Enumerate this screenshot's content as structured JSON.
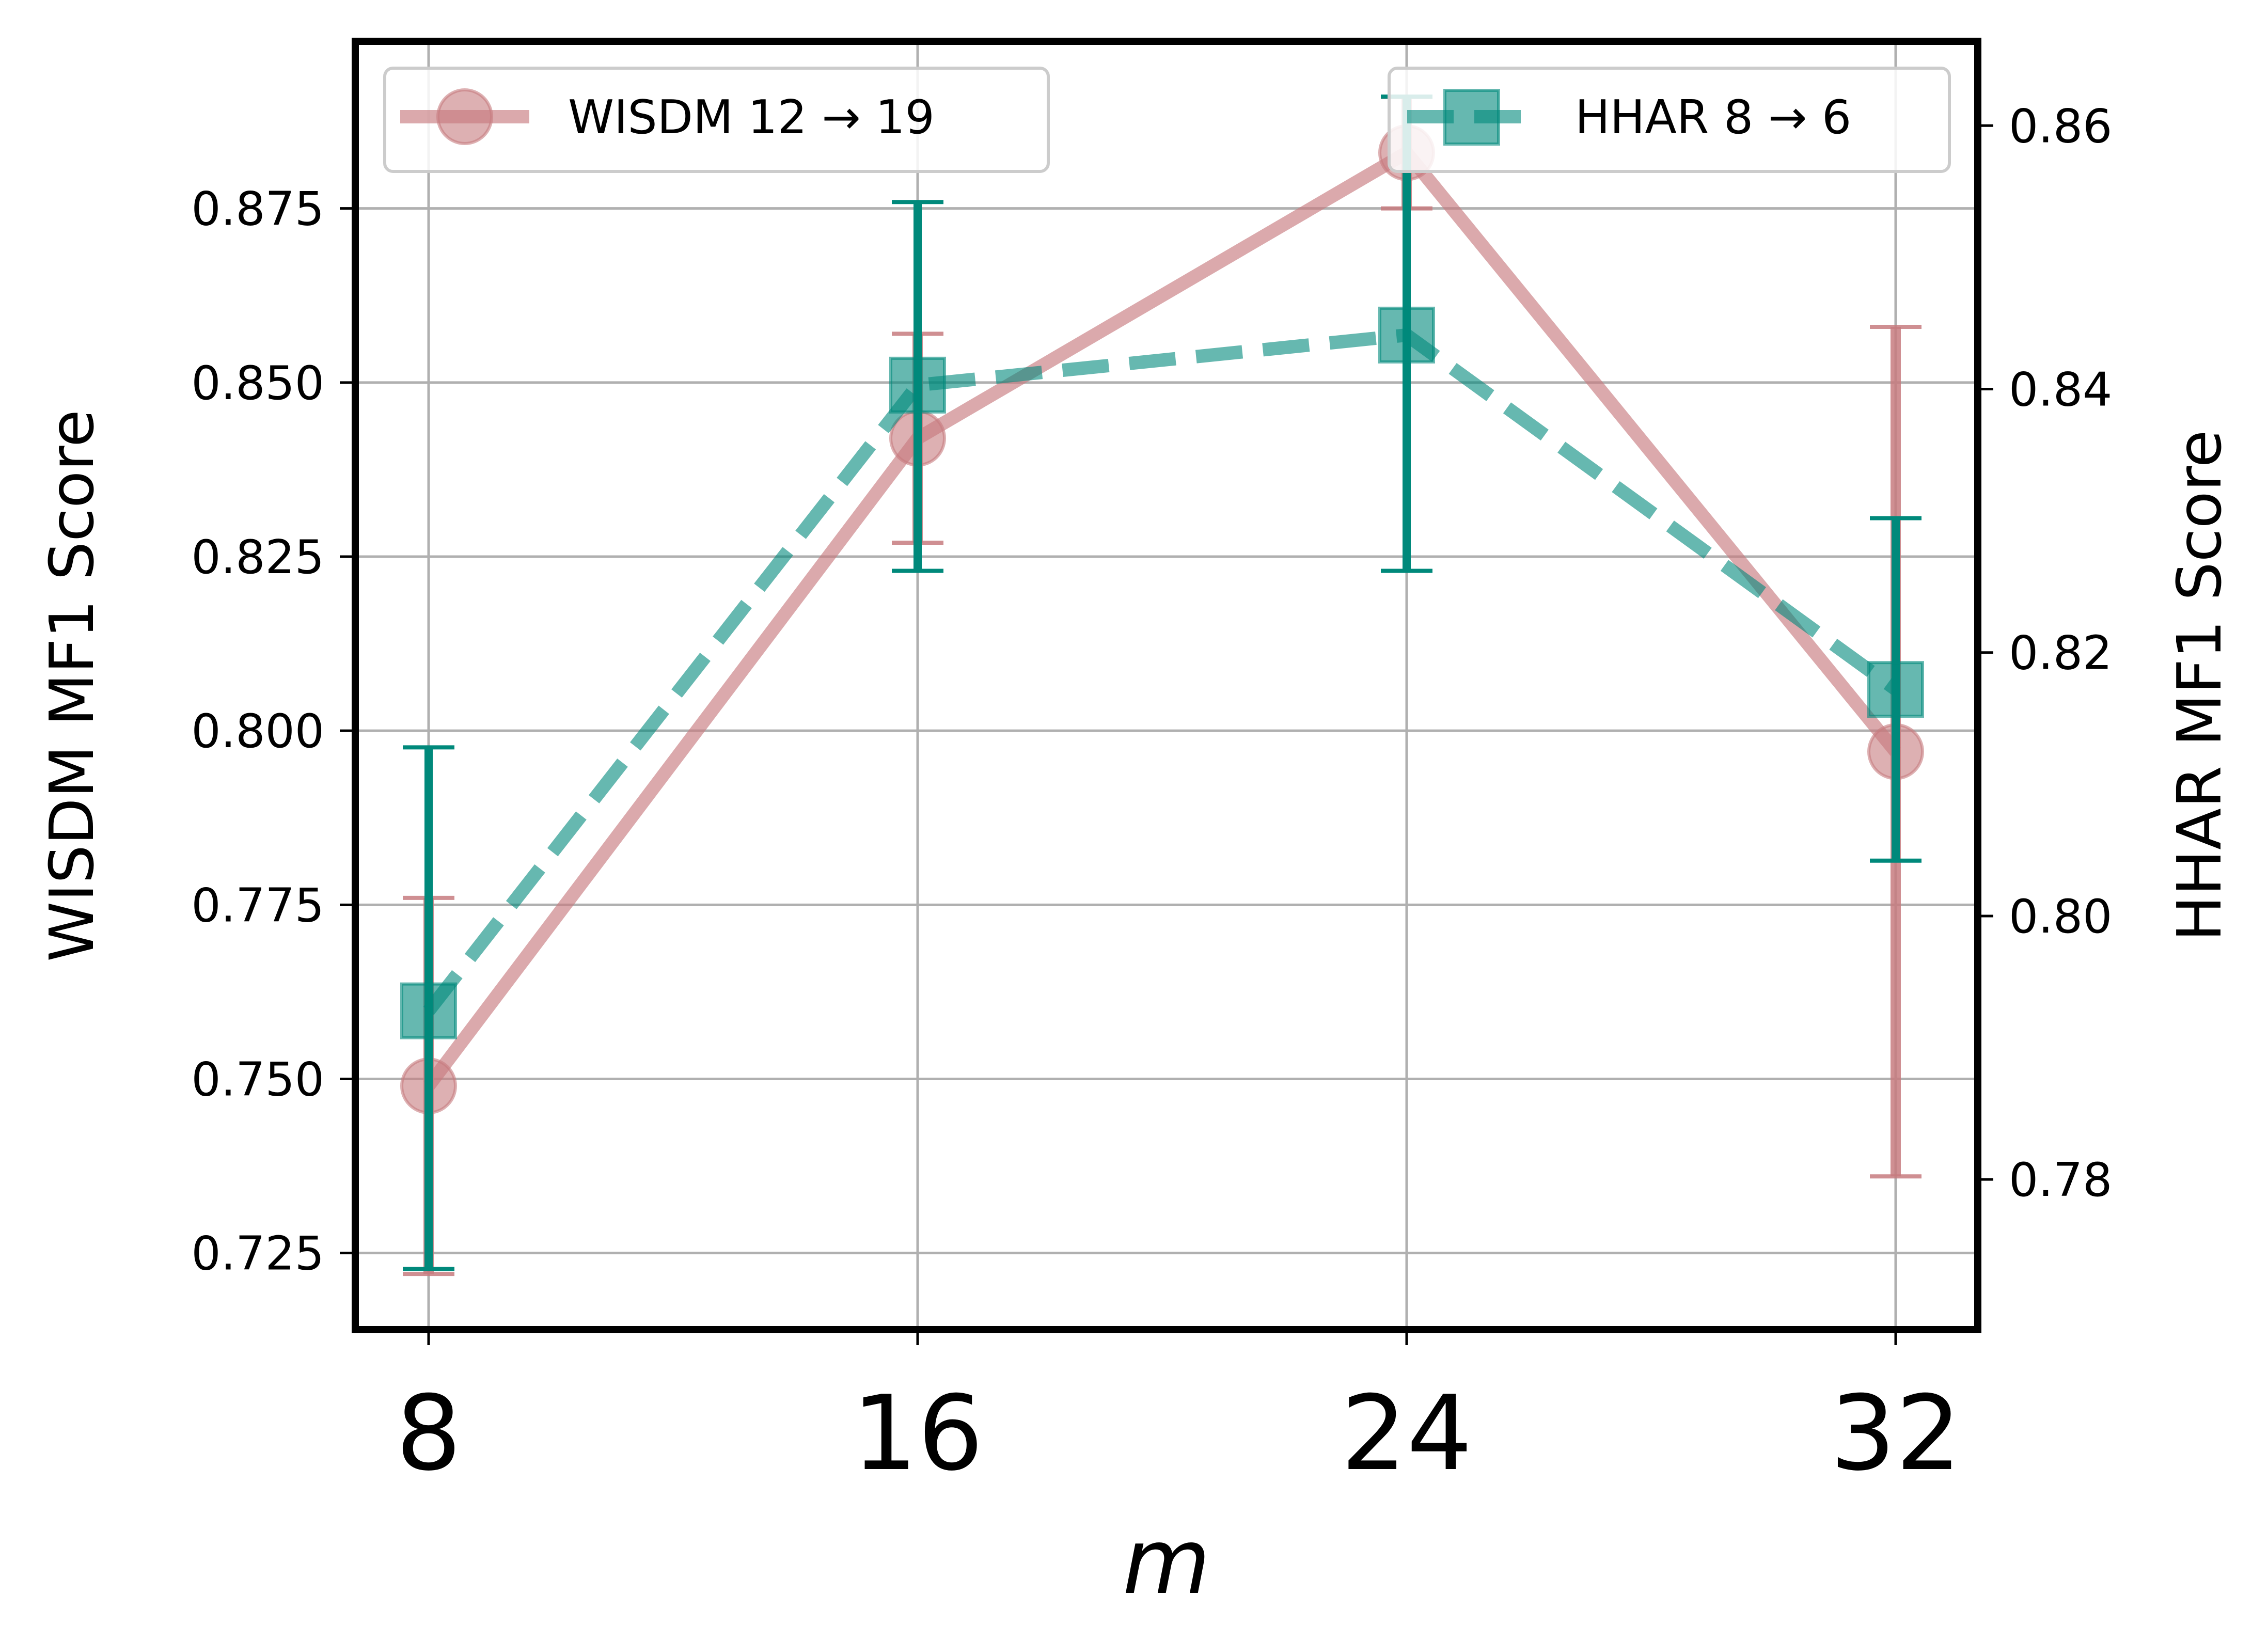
{
  "chart_data": {
    "type": "line",
    "x": [
      8,
      16,
      24,
      32
    ],
    "xlabel": "m",
    "xticks": [
      "8",
      "16",
      "24",
      "32"
    ],
    "y_left": {
      "label": "WISDM MF1 Score",
      "range": [
        0.714,
        0.899
      ],
      "ticks": [
        "0.725",
        "0.750",
        "0.775",
        "0.800",
        "0.825",
        "0.850",
        "0.875"
      ]
    },
    "y_right": {
      "label": "HHAR MF1 Score",
      "range": [
        0.7686,
        0.8664
      ],
      "ticks": [
        "0.78",
        "0.80",
        "0.82",
        "0.84",
        "0.86"
      ]
    },
    "grid": true,
    "series": [
      {
        "name": "WISDM 12 → 19",
        "axis": "left",
        "color": "#c77b7f",
        "line_style": "solid",
        "marker": "circle",
        "values": [
          0.749,
          0.842,
          0.883,
          0.797
        ],
        "err_low": [
          0.722,
          0.827,
          0.875,
          0.736
        ],
        "err_high": [
          0.776,
          0.857,
          0.891,
          0.858
        ]
      },
      {
        "name": "HHAR 8 → 6",
        "axis": "right",
        "color": "#00897b",
        "line_style": "dashed",
        "marker": "square",
        "values": [
          0.7928,
          0.8403,
          0.8441,
          0.8172
        ],
        "err_low": [
          0.7732,
          0.8262,
          0.8262,
          0.8042
        ],
        "err_high": [
          0.8128,
          0.8542,
          0.8622,
          0.8302
        ]
      }
    ],
    "legends": [
      {
        "series": 0,
        "placement": "top-left"
      },
      {
        "series": 1,
        "placement": "top-right"
      }
    ]
  }
}
